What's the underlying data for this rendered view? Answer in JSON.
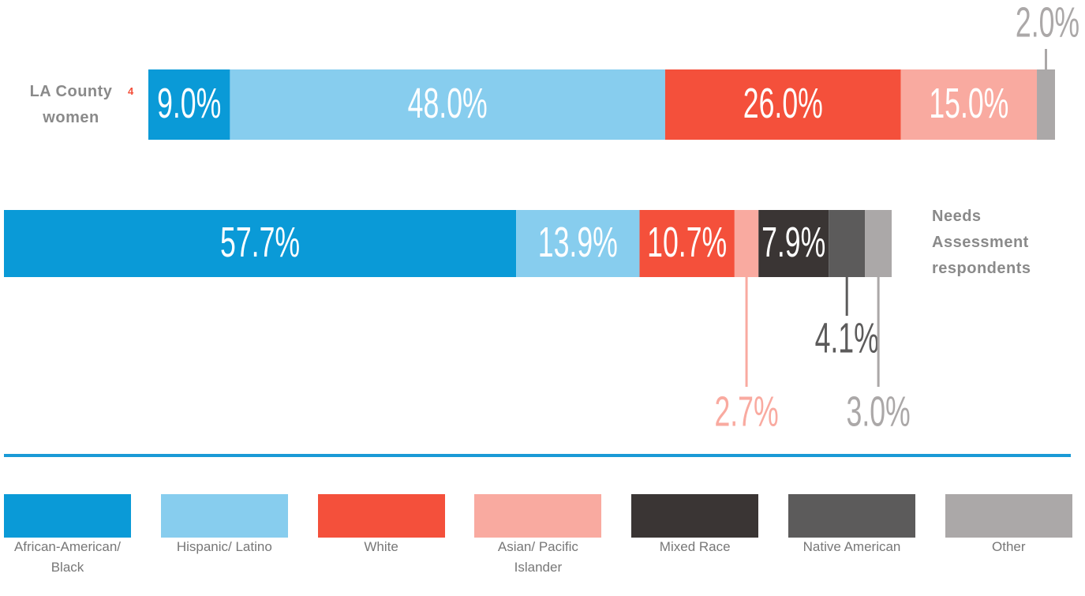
{
  "chart_data": {
    "type": "stacked_bar",
    "orientation": "horizontal",
    "categories": [
      "LA County women",
      "Needs Assessment respondents"
    ],
    "category_footnotes": [
      "4",
      null
    ],
    "series": [
      {
        "name": "African-American/ Black",
        "color": "#0a9ad7",
        "values": [
          9.0,
          57.7
        ],
        "value_labels": [
          "9.0%",
          "57.7%"
        ]
      },
      {
        "name": "Hispanic/ Latino",
        "color": "#87cdee",
        "values": [
          48.0,
          13.9
        ],
        "value_labels": [
          "48.0%",
          "13.9%"
        ]
      },
      {
        "name": "White",
        "color": "#f4503b",
        "values": [
          26.0,
          10.7
        ],
        "value_labels": [
          "26.0%",
          "10.7%"
        ]
      },
      {
        "name": "Asian/ Pacific Islander",
        "color": "#f9aaa0",
        "values": [
          15.0,
          2.7
        ],
        "value_labels": [
          "15.0%",
          "2.7%"
        ]
      },
      {
        "name": "Mixed Race",
        "color": "#3a3534",
        "values": [
          0,
          7.9
        ],
        "value_labels": [
          null,
          "7.9%"
        ]
      },
      {
        "name": "Native American",
        "color": "#5c5b5b",
        "values": [
          0,
          4.1
        ],
        "value_labels": [
          null,
          "4.1%"
        ]
      },
      {
        "name": "Other",
        "color": "#aba8a8",
        "values": [
          2.0,
          3.0
        ],
        "value_labels": [
          "2.0%",
          "3.0%"
        ]
      }
    ],
    "xlim": [
      0,
      100
    ]
  }
}
